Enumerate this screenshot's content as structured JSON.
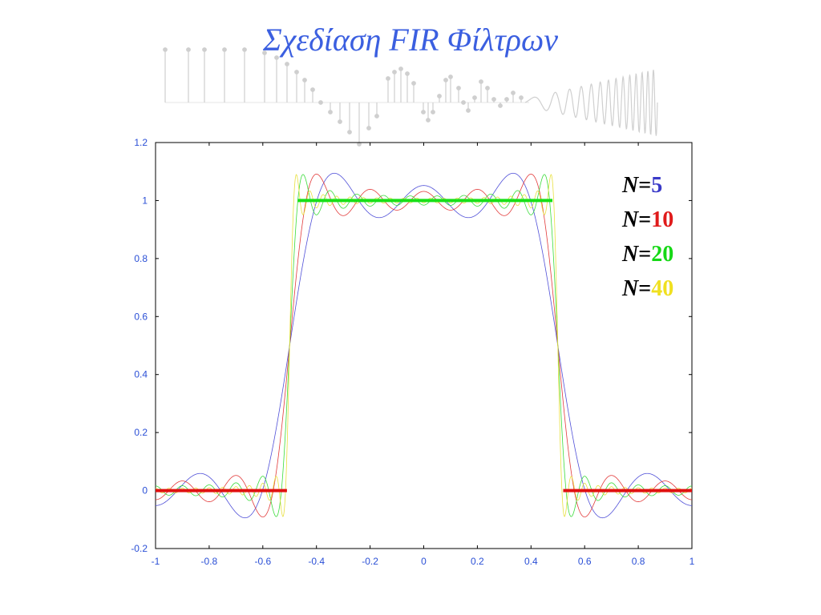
{
  "slide": {
    "title": "Σχεδίαση  FIR Φίλτρων",
    "title_color": "#3b5fe0"
  },
  "legend": {
    "prefix": "N",
    "equals": "=",
    "entries": [
      {
        "value": "5",
        "color": "#3a3ac8"
      },
      {
        "value": "10",
        "color": "#e01b1b"
      },
      {
        "value": "20",
        "color": "#16d816"
      },
      {
        "value": "40",
        "color": "#f0e020"
      }
    ]
  },
  "chart_data": {
    "type": "line",
    "xlim": [
      -1,
      1
    ],
    "ylim": [
      -0.2,
      1.2
    ],
    "xticks": [
      -1,
      -0.8,
      -0.6,
      -0.4,
      -0.2,
      0,
      0.2,
      0.4,
      0.6,
      0.8,
      1
    ],
    "xtick_labels": [
      "-1",
      "-0.8",
      "-0.6",
      "-0.4",
      "-0.2",
      "0",
      "0.2",
      "0.4",
      "0.6",
      "0.8",
      "1"
    ],
    "yticks": [
      -0.2,
      0,
      0.2,
      0.4,
      0.6,
      0.8,
      1,
      1.2
    ],
    "ytick_labels": [
      "-0.2",
      "0",
      "0.2",
      "0.4",
      "0.6",
      "0.8",
      "1",
      "1.2"
    ],
    "tick_label_color": "#2a4fd6",
    "grid": false,
    "series": [
      {
        "name": "N=5",
        "color": "#5050d8",
        "N": 5
      },
      {
        "name": "N=10",
        "color": "#e23a3a",
        "N": 10
      },
      {
        "name": "N=20",
        "color": "#3bdc3b",
        "N": 20
      },
      {
        "name": "N=40",
        "color": "#e8e040",
        "N": 40
      }
    ],
    "ideal_response": [
      {
        "x": [
          -0.47,
          0.48
        ],
        "y": 1,
        "color": "#18e018"
      },
      {
        "x": [
          -1,
          -0.51
        ],
        "y": 0,
        "color": "#e01010"
      },
      {
        "x": [
          0.52,
          1
        ],
        "y": 0,
        "color": "#e01010"
      }
    ]
  }
}
